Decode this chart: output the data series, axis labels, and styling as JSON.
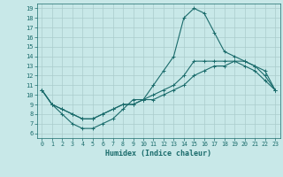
{
  "xlabel": "Humidex (Indice chaleur)",
  "xlim": [
    -0.5,
    23.5
  ],
  "ylim": [
    5.5,
    19.5
  ],
  "xticks": [
    0,
    1,
    2,
    3,
    4,
    5,
    6,
    7,
    8,
    9,
    10,
    11,
    12,
    13,
    14,
    15,
    16,
    17,
    18,
    19,
    20,
    21,
    22,
    23
  ],
  "yticks": [
    6,
    7,
    8,
    9,
    10,
    11,
    12,
    13,
    14,
    15,
    16,
    17,
    18,
    19
  ],
  "background_color": "#c8e8e8",
  "grid_color": "#aacccc",
  "line_color": "#1a6b6b",
  "line1_y": [
    10.5,
    9.0,
    8.0,
    7.0,
    6.5,
    6.5,
    7.0,
    7.5,
    8.5,
    9.5,
    9.5,
    11.0,
    12.5,
    14.0,
    18.0,
    19.0,
    18.5,
    16.5,
    14.5,
    14.0,
    13.5,
    13.0,
    12.0,
    10.5
  ],
  "line2_y": [
    10.5,
    9.0,
    8.5,
    8.0,
    7.5,
    7.5,
    8.0,
    8.5,
    9.0,
    9.0,
    9.5,
    10.0,
    10.5,
    11.0,
    12.0,
    13.5,
    13.5,
    13.5,
    13.5,
    13.5,
    13.5,
    13.0,
    12.5,
    10.5
  ],
  "line3_y": [
    10.5,
    9.0,
    8.5,
    8.0,
    7.5,
    7.5,
    8.0,
    8.5,
    9.0,
    9.0,
    9.5,
    9.5,
    10.0,
    10.5,
    11.0,
    12.0,
    12.5,
    13.0,
    13.0,
    13.5,
    13.0,
    12.5,
    11.5,
    10.5
  ]
}
